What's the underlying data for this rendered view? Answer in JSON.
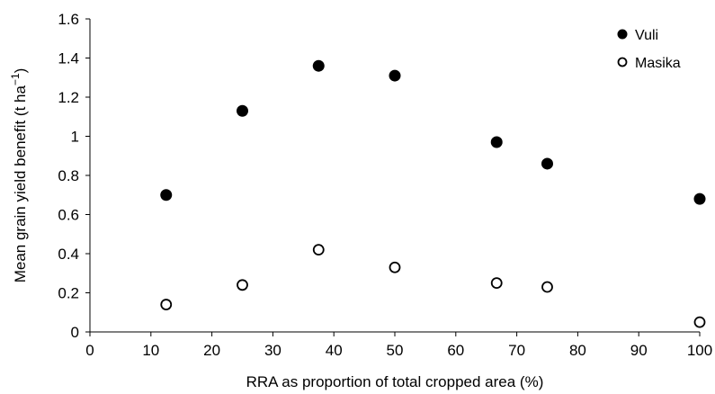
{
  "chart_data": {
    "type": "scatter",
    "xlabel": "RRA as proportion of total cropped area (%)",
    "ylabel_main": "Mean grain yield benefit (t ha",
    "ylabel_sup": "−1",
    "ylabel_close": ")",
    "xlim": [
      0,
      100
    ],
    "ylim": [
      0,
      1.6
    ],
    "x_ticks": [
      "0",
      "10",
      "20",
      "30",
      "40",
      "50",
      "60",
      "70",
      "80",
      "90",
      "100"
    ],
    "y_ticks": [
      "0",
      "0.2",
      "0.4",
      "0.6",
      "0.8",
      "1",
      "1.2",
      "1.4",
      "1.6"
    ],
    "grid": false,
    "legend_position": "top-right",
    "series": [
      {
        "name": "Vuli",
        "marker": "filled-circle",
        "color": "#000000",
        "points": [
          {
            "x": 12.5,
            "y": 0.7
          },
          {
            "x": 25,
            "y": 1.13
          },
          {
            "x": 37.5,
            "y": 1.36
          },
          {
            "x": 50,
            "y": 1.31
          },
          {
            "x": 66.7,
            "y": 0.97
          },
          {
            "x": 75,
            "y": 0.86
          },
          {
            "x": 100,
            "y": 0.68
          }
        ]
      },
      {
        "name": "Masika",
        "marker": "open-circle",
        "color": "#000000",
        "points": [
          {
            "x": 12.5,
            "y": 0.14
          },
          {
            "x": 25,
            "y": 0.24
          },
          {
            "x": 37.5,
            "y": 0.42
          },
          {
            "x": 50,
            "y": 0.33
          },
          {
            "x": 66.7,
            "y": 0.25
          },
          {
            "x": 75,
            "y": 0.23
          },
          {
            "x": 100,
            "y": 0.05
          }
        ]
      }
    ]
  }
}
